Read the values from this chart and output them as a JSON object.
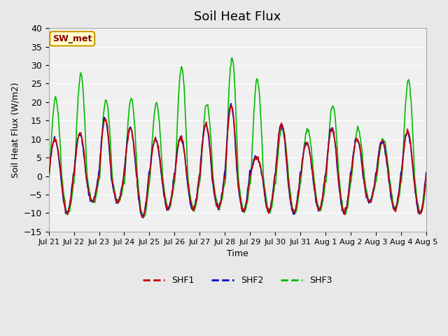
{
  "title": "Soil Heat Flux",
  "ylabel": "Soil Heat Flux (W/m2)",
  "xlabel": "Time",
  "ylim": [
    -15,
    40
  ],
  "yticks": [
    -15,
    -10,
    -5,
    0,
    5,
    10,
    15,
    20,
    25,
    30,
    35,
    40
  ],
  "xtick_labels": [
    "Jul 21",
    "Jul 22",
    "Jul 23",
    "Jul 24",
    "Jul 25",
    "Jul 26",
    "Jul 27",
    "Jul 28",
    "Jul 29",
    "Jul 30",
    "Jul 31",
    "Aug 1",
    "Aug 2",
    "Aug 3",
    "Aug 4",
    "Aug 5"
  ],
  "series_colors": {
    "SHF1": "#cc0000",
    "SHF2": "#0000cc",
    "SHF3": "#00bb00"
  },
  "line_width": 1.2,
  "bg_color": "#e8e8e8",
  "plot_bg_color": "#f0f0f0",
  "annotation_text": "SW_met",
  "annotation_bg": "#ffffcc",
  "annotation_border": "#cc9900",
  "annotation_text_color": "#880000",
  "n_days": 15,
  "points_per_day": 48,
  "peak_vals_shf1": [
    10,
    11.5,
    15.5,
    13,
    10,
    10.5,
    14,
    19,
    5,
    14,
    9,
    13,
    10,
    9.5,
    12
  ],
  "peak_vals_shf3": [
    21,
    27.5,
    20.5,
    21,
    19.5,
    29.5,
    19.5,
    32,
    26,
    13,
    12.5,
    19,
    12.5,
    10,
    26
  ],
  "trough_vals": [
    -10,
    -7,
    -7,
    -11,
    -9,
    -9,
    -8.5,
    -9.5,
    -9.5,
    -10,
    -9,
    -10,
    -7,
    -9,
    -10
  ]
}
